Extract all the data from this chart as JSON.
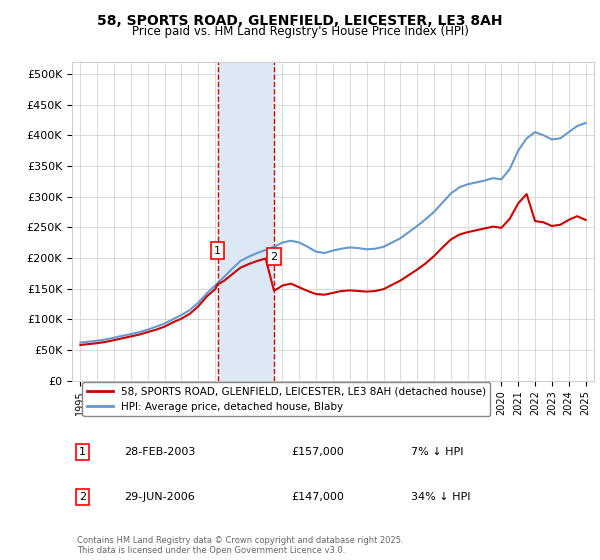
{
  "title": "58, SPORTS ROAD, GLENFIELD, LEICESTER, LE3 8AH",
  "subtitle": "Price paid vs. HM Land Registry's House Price Index (HPI)",
  "ylim": [
    0,
    520000
  ],
  "yticks": [
    0,
    50000,
    100000,
    150000,
    200000,
    250000,
    300000,
    350000,
    400000,
    450000,
    500000
  ],
  "ytick_labels": [
    "£0",
    "£50K",
    "£100K",
    "£150K",
    "£200K",
    "£250K",
    "£300K",
    "£350K",
    "£400K",
    "£450K",
    "£500K"
  ],
  "sale1_date": 2003.15,
  "sale1_price": 157000,
  "sale1_label": "1",
  "sale2_date": 2006.49,
  "sale2_price": 147000,
  "sale2_label": "2",
  "legend_property": "58, SPORTS ROAD, GLENFIELD, LEICESTER, LE3 8AH (detached house)",
  "legend_hpi": "HPI: Average price, detached house, Blaby",
  "footnote": "Contains HM Land Registry data © Crown copyright and database right 2025.\nThis data is licensed under the Open Government Licence v3.0.",
  "row1_num": "1",
  "row1_date": "28-FEB-2003",
  "row1_price": "£157,000",
  "row1_hpi": "7% ↓ HPI",
  "row2_num": "2",
  "row2_date": "29-JUN-2006",
  "row2_price": "£147,000",
  "row2_hpi": "34% ↓ HPI",
  "property_color": "#cc0000",
  "hpi_color": "#6699cc",
  "shade_color": "#dce9f5",
  "dashed_color": "#cc0000",
  "background_color": "#ffffff",
  "grid_color": "#cccccc",
  "years_hpi": [
    1995,
    1995.5,
    1996,
    1996.5,
    1997,
    1997.5,
    1998,
    1998.5,
    1999,
    1999.5,
    2000,
    2000.5,
    2001,
    2001.5,
    2002,
    2002.5,
    2003,
    2003.5,
    2004,
    2004.5,
    2005,
    2005.5,
    2006,
    2006.5,
    2007,
    2007.5,
    2008,
    2008.5,
    2009,
    2009.5,
    2010,
    2010.5,
    2011,
    2011.5,
    2012,
    2012.5,
    2013,
    2013.5,
    2014,
    2014.5,
    2015,
    2015.5,
    2016,
    2016.5,
    2017,
    2017.5,
    2018,
    2018.5,
    2019,
    2019.5,
    2020,
    2020.5,
    2021,
    2021.5,
    2022,
    2022.5,
    2023,
    2023.5,
    2024,
    2024.5,
    2025
  ],
  "hpi_values": [
    62000,
    63500,
    65000,
    67000,
    70000,
    73000,
    76000,
    79000,
    83000,
    88000,
    93000,
    100000,
    107000,
    115000,
    127000,
    142000,
    155000,
    168000,
    182000,
    195000,
    202000,
    208000,
    213000,
    218000,
    225000,
    228000,
    225000,
    218000,
    210000,
    208000,
    212000,
    215000,
    217000,
    216000,
    214000,
    215000,
    218000,
    225000,
    232000,
    242000,
    252000,
    263000,
    275000,
    290000,
    305000,
    315000,
    320000,
    323000,
    326000,
    330000,
    328000,
    345000,
    375000,
    395000,
    405000,
    400000,
    393000,
    395000,
    405000,
    415000,
    420000
  ],
  "years_prop": [
    1995,
    1995.5,
    1996,
    1996.5,
    1997,
    1997.5,
    1998,
    1998.5,
    1999,
    1999.5,
    2000,
    2000.5,
    2001,
    2001.5,
    2002,
    2002.5,
    2003,
    2003.15,
    2003.5,
    2004,
    2004.5,
    2005,
    2005.5,
    2006,
    2006.49,
    2006.6,
    2007,
    2007.5,
    2008,
    2008.5,
    2009,
    2009.5,
    2010,
    2010.5,
    2011,
    2011.5,
    2012,
    2012.5,
    2013,
    2013.5,
    2014,
    2014.5,
    2015,
    2015.5,
    2016,
    2016.5,
    2017,
    2017.5,
    2018,
    2018.5,
    2019,
    2019.5,
    2020,
    2020.5,
    2021,
    2021.5,
    2022,
    2022.5,
    2023,
    2023.5,
    2024,
    2024.5,
    2025
  ],
  "prop_values": [
    58000,
    59500,
    61000,
    63000,
    66000,
    69000,
    72000,
    75000,
    79000,
    83000,
    88000,
    95000,
    101000,
    109000,
    121000,
    137000,
    149000,
    157000,
    162000,
    173000,
    184000,
    190000,
    195000,
    199000,
    147000,
    148000,
    155000,
    158000,
    152000,
    146000,
    141000,
    140000,
    143000,
    146000,
    147000,
    146000,
    145000,
    146000,
    149000,
    156000,
    163000,
    172000,
    181000,
    191000,
    203000,
    217000,
    230000,
    238000,
    242000,
    245000,
    248000,
    251000,
    249000,
    264000,
    289000,
    304000,
    260000,
    258000,
    252000,
    254000,
    262000,
    268000,
    262000
  ]
}
